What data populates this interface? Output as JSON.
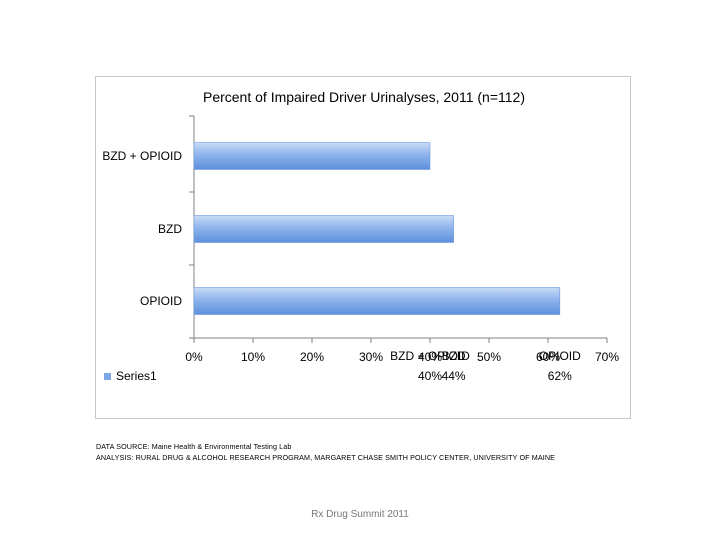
{
  "chart_data": {
    "type": "bar",
    "orientation": "horizontal",
    "title": "Percent of Impaired Driver Urinalyses, 2011 (n=112)",
    "categories": [
      "OPIOID",
      "BZD",
      "BZD + OPIOID"
    ],
    "series": [
      {
        "name": "Series1",
        "values": [
          62,
          44,
          40
        ]
      }
    ],
    "value_labels": [
      "62%",
      "44%",
      "40%"
    ],
    "xticks": [
      "0%",
      "10%",
      "20%",
      "30%",
      "40%",
      "50%",
      "60%",
      "70%"
    ],
    "xlim": [
      0,
      70
    ],
    "grid": false,
    "legend": "left-bottom",
    "colors": {
      "bar_top": "#c9dcf7",
      "bar_mid": "#8fb4ec",
      "bar_bottom": "#5d8fdc",
      "axis": "#808080"
    }
  },
  "footer": {
    "source_line1": "DATA SOURCE: Maine Health & Environmental Testing Lab",
    "source_line2": "ANALYSIS: RURAL DRUG & ALCOHOL RESEARCH PROGRAM, MARGARET CHASE SMITH POLICY CENTER, UNIVERSITY OF MAINE",
    "summit": "Rx Drug Summit 2011"
  }
}
